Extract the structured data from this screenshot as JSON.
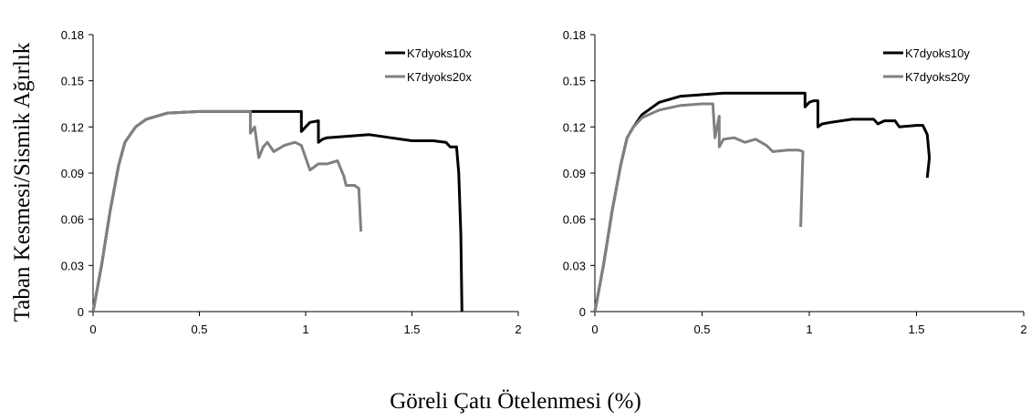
{
  "figure": {
    "ylabel": "Taban Kesmesi/Sismik Ağırlık",
    "xlabel": "Göreli Çatı Ötelenmesi (%)"
  },
  "colors": {
    "series_dark": "#000000",
    "series_light": "#808080"
  },
  "chart_data": [
    {
      "type": "line",
      "xlim": [
        0,
        2
      ],
      "ylim": [
        0,
        0.18
      ],
      "x_ticks": [
        "0",
        "0.5",
        "1",
        "1.5",
        "2"
      ],
      "y_ticks": [
        "0",
        "0.03",
        "0.06",
        "0.09",
        "0.12",
        "0.15",
        "0.18"
      ],
      "legend_position": "top-right",
      "grid": false,
      "series": [
        {
          "name": "K7dyoks10x",
          "color": "#000000",
          "points": [
            [
              0,
              0
            ],
            [
              0.04,
              0.03
            ],
            [
              0.08,
              0.065
            ],
            [
              0.12,
              0.095
            ],
            [
              0.15,
              0.11
            ],
            [
              0.2,
              0.12
            ],
            [
              0.25,
              0.125
            ],
            [
              0.35,
              0.129
            ],
            [
              0.5,
              0.13
            ],
            [
              0.7,
              0.13
            ],
            [
              0.85,
              0.13
            ],
            [
              0.98,
              0.13
            ],
            [
              0.98,
              0.117
            ],
            [
              1.0,
              0.12
            ],
            [
              1.02,
              0.123
            ],
            [
              1.06,
              0.124
            ],
            [
              1.06,
              0.11
            ],
            [
              1.08,
              0.112
            ],
            [
              1.1,
              0.113
            ],
            [
              1.2,
              0.114
            ],
            [
              1.3,
              0.115
            ],
            [
              1.4,
              0.113
            ],
            [
              1.5,
              0.111
            ],
            [
              1.6,
              0.111
            ],
            [
              1.66,
              0.11
            ],
            [
              1.68,
              0.107
            ],
            [
              1.71,
              0.107
            ],
            [
              1.72,
              0.09
            ],
            [
              1.73,
              0.05
            ],
            [
              1.735,
              0.0
            ]
          ]
        },
        {
          "name": "K7dyoks20x",
          "color": "#808080",
          "points": [
            [
              0,
              0
            ],
            [
              0.04,
              0.03
            ],
            [
              0.08,
              0.065
            ],
            [
              0.12,
              0.095
            ],
            [
              0.15,
              0.11
            ],
            [
              0.2,
              0.12
            ],
            [
              0.25,
              0.125
            ],
            [
              0.35,
              0.129
            ],
            [
              0.5,
              0.13
            ],
            [
              0.6,
              0.13
            ],
            [
              0.74,
              0.13
            ],
            [
              0.74,
              0.116
            ],
            [
              0.76,
              0.12
            ],
            [
              0.78,
              0.1
            ],
            [
              0.8,
              0.107
            ],
            [
              0.82,
              0.11
            ],
            [
              0.85,
              0.104
            ],
            [
              0.9,
              0.108
            ],
            [
              0.95,
              0.11
            ],
            [
              0.98,
              0.108
            ],
            [
              1.0,
              0.1
            ],
            [
              1.02,
              0.092
            ],
            [
              1.06,
              0.096
            ],
            [
              1.1,
              0.096
            ],
            [
              1.15,
              0.098
            ],
            [
              1.18,
              0.088
            ],
            [
              1.19,
              0.082
            ],
            [
              1.23,
              0.082
            ],
            [
              1.25,
              0.08
            ],
            [
              1.26,
              0.052
            ]
          ]
        }
      ]
    },
    {
      "type": "line",
      "xlim": [
        0,
        2
      ],
      "ylim": [
        0,
        0.18
      ],
      "x_ticks": [
        "0",
        "0.5",
        "1",
        "1.5",
        "2"
      ],
      "y_ticks": [
        "0",
        "0.03",
        "0.06",
        "0.09",
        "0.12",
        "0.15",
        "0.18"
      ],
      "legend_position": "top-right",
      "grid": false,
      "series": [
        {
          "name": "K7dyoks10y",
          "color": "#000000",
          "points": [
            [
              0,
              0
            ],
            [
              0.04,
              0.03
            ],
            [
              0.08,
              0.065
            ],
            [
              0.12,
              0.095
            ],
            [
              0.15,
              0.113
            ],
            [
              0.18,
              0.12
            ],
            [
              0.22,
              0.128
            ],
            [
              0.3,
              0.136
            ],
            [
              0.4,
              0.14
            ],
            [
              0.5,
              0.141
            ],
            [
              0.6,
              0.142
            ],
            [
              0.8,
              0.142
            ],
            [
              0.98,
              0.142
            ],
            [
              0.98,
              0.133
            ],
            [
              1.0,
              0.136
            ],
            [
              1.02,
              0.137
            ],
            [
              1.04,
              0.137
            ],
            [
              1.04,
              0.12
            ],
            [
              1.06,
              0.122
            ],
            [
              1.1,
              0.123
            ],
            [
              1.2,
              0.125
            ],
            [
              1.3,
              0.125
            ],
            [
              1.32,
              0.122
            ],
            [
              1.35,
              0.124
            ],
            [
              1.4,
              0.124
            ],
            [
              1.42,
              0.12
            ],
            [
              1.5,
              0.121
            ],
            [
              1.53,
              0.121
            ],
            [
              1.55,
              0.115
            ],
            [
              1.56,
              0.1
            ],
            [
              1.55,
              0.087
            ]
          ]
        },
        {
          "name": "K7dyoks20y",
          "color": "#808080",
          "points": [
            [
              0,
              0
            ],
            [
              0.04,
              0.03
            ],
            [
              0.08,
              0.065
            ],
            [
              0.12,
              0.095
            ],
            [
              0.15,
              0.113
            ],
            [
              0.18,
              0.12
            ],
            [
              0.22,
              0.126
            ],
            [
              0.3,
              0.131
            ],
            [
              0.4,
              0.134
            ],
            [
              0.5,
              0.135
            ],
            [
              0.55,
              0.135
            ],
            [
              0.56,
              0.113
            ],
            [
              0.58,
              0.127
            ],
            [
              0.58,
              0.107
            ],
            [
              0.6,
              0.112
            ],
            [
              0.65,
              0.113
            ],
            [
              0.7,
              0.11
            ],
            [
              0.75,
              0.112
            ],
            [
              0.8,
              0.108
            ],
            [
              0.83,
              0.104
            ],
            [
              0.9,
              0.105
            ],
            [
              0.95,
              0.105
            ],
            [
              0.97,
              0.104
            ],
            [
              0.96,
              0.055
            ]
          ]
        }
      ]
    }
  ]
}
